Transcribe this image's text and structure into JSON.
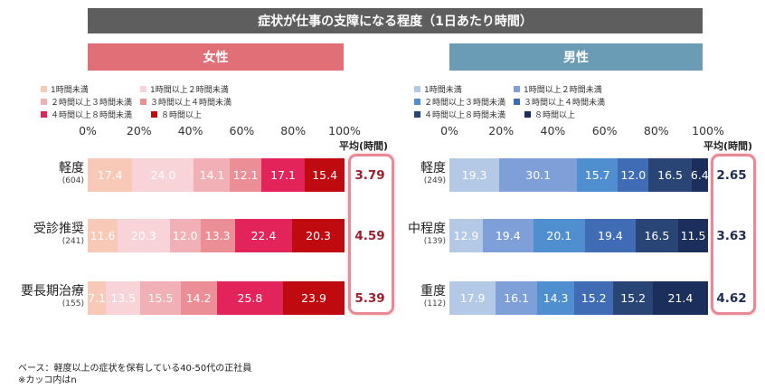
{
  "title": "症状が仕事の支障になる程度（1日あたり時間）",
  "female": {
    "heading": "女性",
    "legend": [
      {
        "label": "1時間未満",
        "color": "#f7c9b6"
      },
      {
        "label": "1時間以上２時間未満",
        "color": "#f8d3d8"
      },
      {
        "label": "２時間以上３時間未満",
        "color": "#f1b0b6"
      },
      {
        "label": "３時間以上４時間未満",
        "color": "#ec8e95"
      },
      {
        "label": "４時間以上８時間未満",
        "color": "#e3245a"
      },
      {
        "label": "８時間以上",
        "color": "#bf0a10"
      }
    ],
    "avg_label": "平均(時間)"
  },
  "male": {
    "heading": "男性",
    "legend": [
      {
        "label": "1時間未満",
        "color": "#b4c9e6"
      },
      {
        "label": "1時間以上２時間未満",
        "color": "#7f9fd8"
      },
      {
        "label": "２時間以上３時間未満",
        "color": "#4f8fd0"
      },
      {
        "label": "３時間以上４時間未満",
        "color": "#3f6cb5"
      },
      {
        "label": "４時間以上８時間未満",
        "color": "#284575"
      },
      {
        "label": "８時間以上",
        "color": "#1c2f5c"
      }
    ],
    "avg_label": "平均(時間)"
  },
  "notes": {
    "line1": "ベース：軽度以上の症状を保有している40-50代の正社員",
    "line2": "※カッコ内はn"
  },
  "chart_data": [
    {
      "type": "bar",
      "stacked": true,
      "orientation": "horizontal",
      "title": "女性",
      "categories": [
        "軽度",
        "受診推奨",
        "要長期治療"
      ],
      "n": [
        "(604)",
        "(241)",
        "(155)"
      ],
      "xlim": [
        0,
        100
      ],
      "xticks": [
        "0%",
        "20%",
        "40%",
        "60%",
        "80%",
        "100%"
      ],
      "series": [
        {
          "name": "1時間未満",
          "values": [
            17.4,
            11.6,
            7.1
          ]
        },
        {
          "name": "1時間以上２時間未満",
          "values": [
            24.0,
            20.3,
            13.5
          ]
        },
        {
          "name": "２時間以上３時間未満",
          "values": [
            14.1,
            12.0,
            15.5
          ]
        },
        {
          "name": "３時間以上４時間未満",
          "values": [
            12.1,
            13.3,
            14.2
          ]
        },
        {
          "name": "４時間以上８時間未満",
          "values": [
            17.1,
            22.4,
            25.8
          ]
        },
        {
          "name": "８時間以上",
          "values": [
            15.4,
            20.3,
            23.9
          ]
        }
      ],
      "averages": [
        3.79,
        4.59,
        5.39
      ]
    },
    {
      "type": "bar",
      "stacked": true,
      "orientation": "horizontal",
      "title": "男性",
      "categories": [
        "軽度",
        "中程度",
        "重度"
      ],
      "n": [
        "(249)",
        "(139)",
        "(112)"
      ],
      "xlim": [
        0,
        100
      ],
      "xticks": [
        "0%",
        "20%",
        "40%",
        "60%",
        "80%",
        "100%"
      ],
      "series": [
        {
          "name": "1時間未満",
          "values": [
            19.3,
            12.9,
            17.9
          ]
        },
        {
          "name": "1時間以上２時間未満",
          "values": [
            30.1,
            19.4,
            16.1
          ]
        },
        {
          "name": "２時間以上３時間未満",
          "values": [
            15.7,
            20.1,
            14.3
          ]
        },
        {
          "name": "３時間以上４時間未満",
          "values": [
            12.0,
            19.4,
            15.2
          ]
        },
        {
          "name": "４時間以上８時間未満",
          "values": [
            16.5,
            16.5,
            15.2
          ]
        },
        {
          "name": "８時間以上",
          "values": [
            6.4,
            11.5,
            21.4
          ]
        }
      ],
      "averages": [
        2.65,
        3.63,
        4.62
      ]
    }
  ]
}
